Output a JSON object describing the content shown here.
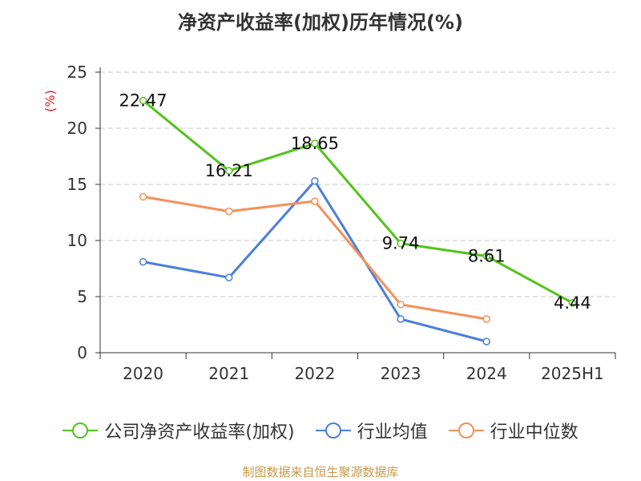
{
  "chart_data": {
    "type": "line",
    "title": "净资产收益率(加权)历年情况(%)",
    "ylabel": "(%)",
    "categories": [
      "2020",
      "2021",
      "2022",
      "2023",
      "2024",
      "2025H1"
    ],
    "ylim": [
      0,
      25
    ],
    "yticks": [
      "0",
      "5",
      "10",
      "15",
      "20",
      "25"
    ],
    "grid": true,
    "legend_position": "bottom",
    "series": [
      {
        "name": "公司净资产收益率(加权)",
        "color": "#52c41a",
        "values": [
          22.47,
          16.21,
          18.65,
          9.74,
          8.61,
          4.44
        ],
        "labels": [
          "22.47",
          "16.21",
          "18.65",
          "9.74",
          "8.61",
          "4.44"
        ]
      },
      {
        "name": "行业均值",
        "color": "#4a7fdc",
        "values": [
          8.1,
          6.7,
          15.3,
          3.0,
          1.0,
          null
        ]
      },
      {
        "name": "行业中位数",
        "color": "#f4905a",
        "values": [
          13.9,
          12.6,
          13.5,
          4.3,
          3.0,
          null
        ]
      }
    ]
  },
  "source": "制图数据来自恒生聚源数据库"
}
